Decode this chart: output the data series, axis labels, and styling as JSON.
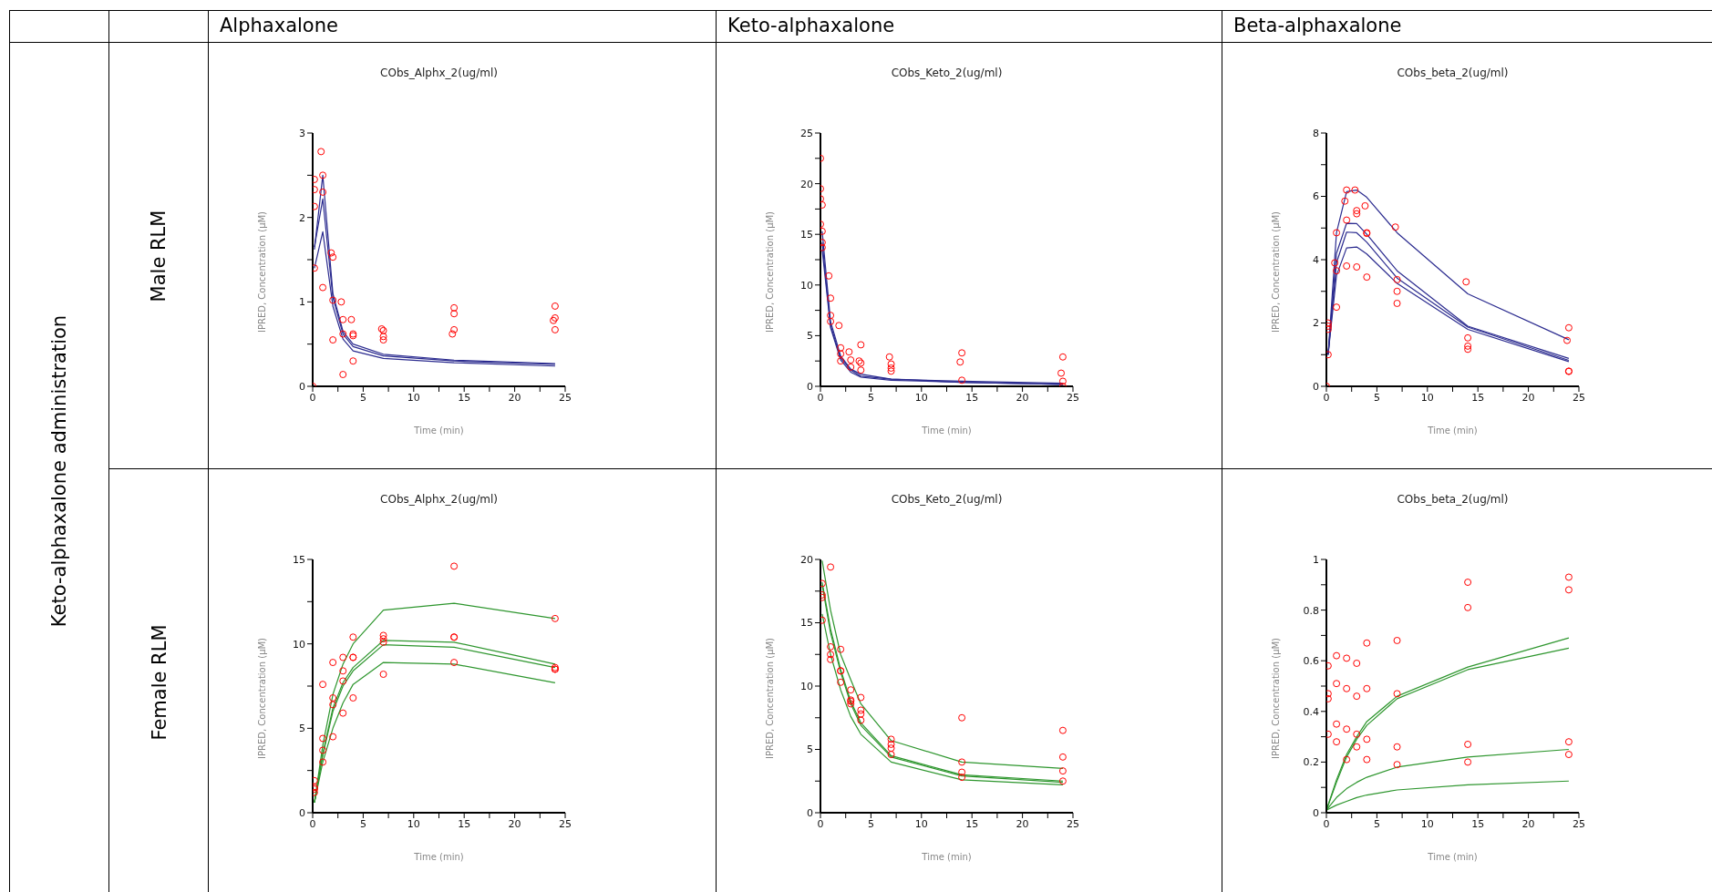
{
  "chart_data": [
    {
      "type": "line",
      "title": "CObs_Alphx_2(ug/ml)",
      "xlabel": "Time (min)",
      "ylabel": "IPRED, Concentration (µM)",
      "annotations": [
        "Alphaxalone",
        "Male RLM",
        "Keto-alphaxalone administration"
      ],
      "xlim": [
        0,
        25
      ],
      "xticks": [
        0,
        {
          "value": 2.5,
          "label": null
        },
        5,
        {
          "value": 7.5,
          "label": null
        },
        10,
        {
          "value": 12.5,
          "label": null
        },
        15,
        {
          "value": 17.5,
          "label": null
        },
        20,
        {
          "value": 22.5,
          "label": null
        },
        25
      ],
      "ylim": [
        0,
        3
      ],
      "yticks": [
        0,
        {
          "value": 0.5,
          "label": null
        },
        1,
        {
          "value": 1.5,
          "label": null
        },
        2,
        {
          "value": 2.5,
          "label": null
        },
        3
      ],
      "series": [
        {
          "type": "line",
          "color": "#2b2b8f",
          "x": [
            0.17,
            1,
            2,
            3,
            4,
            7,
            14,
            24
          ],
          "values": [
            1.62,
            2.5,
            1.1,
            0.65,
            0.5,
            0.38,
            0.31,
            0.27
          ]
        },
        {
          "type": "line",
          "color": "#2b2b8f",
          "x": [
            0.17,
            1,
            2,
            3,
            4,
            7,
            14,
            24
          ],
          "values": [
            1.65,
            2.22,
            1.05,
            0.62,
            0.47,
            0.36,
            0.3,
            0.26
          ]
        },
        {
          "type": "line",
          "color": "#2b2b8f",
          "x": [
            0.17,
            1,
            2,
            3,
            4,
            7,
            14,
            24
          ],
          "values": [
            1.4,
            1.83,
            0.95,
            0.56,
            0.42,
            0.33,
            0.28,
            0.24
          ]
        },
        {
          "type": "scatter",
          "color": "#ff0000",
          "marker": "circle",
          "x": [
            0,
            0.17,
            0.17,
            0.17,
            0.17,
            0.83,
            1,
            1,
            1,
            1.83,
            2,
            2,
            2,
            2.83,
            3,
            3,
            3,
            3.83,
            4,
            4,
            4,
            6.83,
            7,
            7,
            7,
            13.83,
            14,
            14,
            14,
            23.83,
            24,
            24,
            24
          ],
          "values": [
            0,
            2.45,
            2.33,
            2.13,
            1.4,
            2.78,
            2.5,
            2.3,
            1.17,
            1.58,
            1.53,
            1.02,
            0.55,
            1.0,
            0.79,
            0.62,
            0.14,
            0.79,
            0.62,
            0.6,
            0.3,
            0.68,
            0.66,
            0.59,
            0.55,
            0.62,
            0.93,
            0.86,
            0.67,
            0.78,
            0.95,
            0.81,
            0.67
          ]
        }
      ]
    },
    {
      "type": "line",
      "title": "CObs_Keto_2(ug/ml)",
      "xlabel": "Time (min)",
      "ylabel": "IPRED, Concentration (µM)",
      "annotations": [
        "Keto-alphaxalone"
      ],
      "xlim": [
        0,
        25
      ],
      "xticks": [
        0,
        {
          "value": 2.5,
          "label": null
        },
        5,
        {
          "value": 7.5,
          "label": null
        },
        10,
        {
          "value": 12.5,
          "label": null
        },
        15,
        {
          "value": 17.5,
          "label": null
        },
        20,
        {
          "value": 22.5,
          "label": null
        },
        25
      ],
      "ylim": [
        0,
        25
      ],
      "yticks": [
        0,
        {
          "value": 2.5,
          "label": null
        },
        5,
        {
          "value": 7.5,
          "label": null
        },
        10,
        {
          "value": 12.5,
          "label": null
        },
        15,
        {
          "value": 17.5,
          "label": null
        },
        20,
        {
          "value": 22.5,
          "label": null
        },
        25
      ],
      "series": [
        {
          "type": "line",
          "color": "#2b2b8f",
          "x": [
            0.17,
            1,
            2,
            3,
            4,
            7,
            14,
            24
          ],
          "values": [
            15.3,
            6.4,
            3.0,
            1.7,
            1.2,
            0.7,
            0.5,
            0.3
          ]
        },
        {
          "type": "line",
          "color": "#2b2b8f",
          "x": [
            0.17,
            1,
            2,
            3,
            4,
            7,
            14,
            24
          ],
          "values": [
            14.2,
            6.0,
            2.8,
            1.6,
            1.0,
            0.7,
            0.4,
            0.2
          ]
        },
        {
          "type": "line",
          "color": "#2b2b8f",
          "x": [
            0.17,
            1,
            2,
            3,
            4,
            7,
            14,
            24
          ],
          "values": [
            13.5,
            5.8,
            2.6,
            1.4,
            0.9,
            0.6,
            0.4,
            0.2
          ]
        },
        {
          "type": "scatter",
          "color": "#ff0000",
          "marker": "circle",
          "x": [
            0,
            0,
            0,
            0,
            0.17,
            0.17,
            0.17,
            0.17,
            0.83,
            1,
            1,
            1,
            1.83,
            2,
            2,
            2,
            2.83,
            3,
            3,
            3.83,
            4,
            4,
            4,
            6.83,
            7,
            7,
            7,
            13.83,
            14,
            14,
            23.83,
            24,
            24,
            24
          ],
          "values": [
            22.5,
            19.5,
            18.5,
            16,
            17.9,
            15.3,
            14.2,
            13.7,
            10.9,
            8.7,
            7.0,
            6.4,
            6.0,
            3.8,
            3.2,
            2.5,
            3.4,
            2.6,
            1.9,
            2.5,
            4.1,
            2.3,
            1.6,
            2.9,
            2.2,
            1.8,
            1.5,
            2.4,
            3.3,
            0.6,
            1.3,
            2.9,
            0.5,
            0
          ]
        }
      ]
    },
    {
      "type": "line",
      "title": "CObs_beta_2(ug/ml)",
      "xlabel": "Time (min)",
      "ylabel": "IPRED, Concentration (µM)",
      "annotations": [
        "Beta-alphaxalone"
      ],
      "xlim": [
        0,
        25
      ],
      "xticks": [
        0,
        {
          "value": 2.5,
          "label": null
        },
        5,
        {
          "value": 7.5,
          "label": null
        },
        10,
        {
          "value": 12.5,
          "label": null
        },
        15,
        {
          "value": 17.5,
          "label": null
        },
        20,
        {
          "value": 22.5,
          "label": null
        },
        25
      ],
      "ylim": [
        0,
        8
      ],
      "yticks": [
        0,
        {
          "value": 1,
          "label": null
        },
        2,
        {
          "value": 3,
          "label": null
        },
        4,
        {
          "value": 5,
          "label": null
        },
        6,
        {
          "value": 7,
          "label": null
        },
        8
      ],
      "series": [
        {
          "type": "line",
          "color": "#2b2b8f",
          "x": [
            0.17,
            1,
            2,
            3,
            4,
            7,
            14,
            24
          ],
          "values": [
            1.0,
            4.85,
            6.15,
            6.2,
            5.97,
            4.85,
            2.92,
            1.47
          ]
        },
        {
          "type": "line",
          "color": "#2b2b8f",
          "x": [
            0.17,
            1,
            2,
            3,
            4,
            7,
            14,
            24
          ],
          "values": [
            1.0,
            4.2,
            5.15,
            5.14,
            4.8,
            3.65,
            1.9,
            0.88
          ]
        },
        {
          "type": "line",
          "color": "#2b2b8f",
          "x": [
            0.17,
            1,
            2,
            3,
            4,
            7,
            14,
            24
          ],
          "values": [
            1.0,
            3.9,
            4.87,
            4.85,
            4.55,
            3.42,
            1.87,
            0.82
          ]
        },
        {
          "type": "line",
          "color": "#2b2b8f",
          "x": [
            0.17,
            1,
            2,
            3,
            4,
            7,
            14,
            24
          ],
          "values": [
            1.0,
            3.5,
            4.37,
            4.4,
            4.18,
            3.25,
            1.8,
            0.78
          ]
        },
        {
          "type": "scatter",
          "color": "#ff0000",
          "marker": "circle",
          "x": [
            0,
            0.17,
            0.17,
            0.17,
            0.17,
            0.83,
            1,
            1,
            1,
            1.83,
            2,
            2,
            2,
            2.83,
            3,
            3,
            3,
            3.83,
            4,
            4,
            4,
            6.83,
            7,
            7,
            7,
            13.83,
            14,
            14,
            14,
            23.83,
            24,
            24,
            24
          ],
          "values": [
            0,
            2.0,
            1.9,
            1.8,
            1.0,
            3.9,
            4.85,
            3.65,
            2.5,
            5.85,
            6.2,
            5.25,
            3.8,
            6.2,
            5.55,
            5.45,
            3.77,
            5.7,
            4.85,
            4.83,
            3.45,
            5.03,
            3.37,
            3.0,
            2.62,
            3.3,
            1.53,
            1.27,
            1.17,
            1.45,
            1.85,
            0.48,
            0.47
          ]
        }
      ]
    },
    {
      "type": "line",
      "title": "CObs_Alphx_2(ug/ml)",
      "xlabel": "Time (min)",
      "ylabel": "IPRED, Concentration (µM)",
      "annotations": [
        "Female RLM"
      ],
      "xlim": [
        0,
        25
      ],
      "xticks": [
        0,
        {
          "value": 2.5,
          "label": null
        },
        5,
        {
          "value": 7.5,
          "label": null
        },
        10,
        {
          "value": 12.5,
          "label": null
        },
        15,
        {
          "value": 17.5,
          "label": null
        },
        20,
        {
          "value": 22.5,
          "label": null
        },
        25
      ],
      "ylim": [
        0,
        15
      ],
      "yticks": [
        0,
        {
          "value": 2.5,
          "label": null
        },
        5,
        {
          "value": 7.5,
          "label": null
        },
        10,
        {
          "value": 12.5,
          "label": null
        },
        15
      ],
      "series": [
        {
          "type": "line",
          "color": "#2e962e",
          "x": [
            0.17,
            1,
            2,
            3,
            4,
            7,
            14,
            24
          ],
          "values": [
            0.6,
            4.0,
            7.0,
            8.8,
            10.0,
            12.0,
            12.4,
            11.5
          ]
        },
        {
          "type": "line",
          "color": "#2e962e",
          "x": [
            0.17,
            1,
            2,
            3,
            4,
            7,
            14,
            24
          ],
          "values": [
            0.6,
            3.5,
            6.2,
            7.7,
            8.6,
            10.2,
            10.1,
            8.8
          ]
        },
        {
          "type": "line",
          "color": "#2e962e",
          "x": [
            0.17,
            1,
            2,
            3,
            4,
            7,
            14,
            24
          ],
          "values": [
            0.6,
            3.4,
            6.0,
            7.5,
            8.4,
            9.95,
            9.8,
            8.6
          ]
        },
        {
          "type": "line",
          "color": "#2e962e",
          "x": [
            0.17,
            1,
            2,
            3,
            4,
            7,
            14,
            24
          ],
          "values": [
            0.6,
            3.0,
            5.0,
            6.5,
            7.6,
            8.9,
            8.8,
            7.7
          ]
        },
        {
          "type": "scatter",
          "color": "#ff0000",
          "marker": "circle",
          "x": [
            0.17,
            0.17,
            0.17,
            0.17,
            1,
            1,
            1,
            1,
            2,
            2,
            2,
            2,
            3,
            3,
            3,
            3,
            4,
            4,
            4,
            4,
            7,
            7,
            7,
            7,
            14,
            14,
            14,
            14,
            24,
            24,
            24,
            24
          ],
          "values": [
            1.9,
            1.5,
            1.4,
            1.2,
            7.6,
            4.4,
            3.7,
            3.0,
            8.9,
            6.8,
            6.4,
            4.5,
            9.2,
            8.4,
            7.8,
            5.9,
            10.4,
            9.2,
            9.2,
            6.8,
            10.5,
            10.3,
            10.1,
            8.2,
            14.6,
            10.4,
            10.4,
            8.9,
            11.5,
            8.6,
            8.5,
            8.5
          ]
        }
      ]
    },
    {
      "type": "line",
      "title": "CObs_Keto_2(ug/ml)",
      "xlabel": "Time (min)",
      "ylabel": "IPRED, Concentration (µM)",
      "xlim": [
        0,
        25
      ],
      "xticks": [
        0,
        {
          "value": 2.5,
          "label": null
        },
        5,
        {
          "value": 7.5,
          "label": null
        },
        10,
        {
          "value": 12.5,
          "label": null
        },
        15,
        {
          "value": 17.5,
          "label": null
        },
        20,
        {
          "value": 22.5,
          "label": null
        },
        25
      ],
      "ylim": [
        0,
        20
      ],
      "yticks": [
        0,
        {
          "value": 2.5,
          "label": null
        },
        5,
        {
          "value": 7.5,
          "label": null
        },
        10,
        {
          "value": 12.5,
          "label": null
        },
        15,
        {
          "value": 17.5,
          "label": null
        },
        20
      ],
      "series": [
        {
          "type": "line",
          "color": "#2e962e",
          "x": [
            0.17,
            1,
            2,
            3,
            4,
            7,
            14,
            24
          ],
          "values": [
            19.9,
            16.0,
            12.5,
            10.5,
            8.6,
            5.7,
            4.0,
            3.5
          ]
        },
        {
          "type": "line",
          "color": "#2e962e",
          "x": [
            0.17,
            1,
            2,
            3,
            4,
            7,
            14,
            24
          ],
          "values": [
            18.2,
            14.5,
            11.3,
            8.8,
            7.1,
            4.5,
            3.0,
            2.5
          ]
        },
        {
          "type": "line",
          "color": "#2e962e",
          "x": [
            0.17,
            1,
            2,
            3,
            4,
            7,
            14,
            24
          ],
          "values": [
            18.0,
            14.2,
            11.1,
            8.6,
            6.9,
            4.4,
            2.9,
            2.4
          ]
        },
        {
          "type": "line",
          "color": "#2e962e",
          "x": [
            0.17,
            1,
            2,
            3,
            4,
            7,
            14,
            24
          ],
          "values": [
            15.7,
            12.5,
            9.7,
            7.6,
            6.2,
            4.0,
            2.6,
            2.2
          ]
        },
        {
          "type": "scatter",
          "color": "#ff0000",
          "marker": "circle",
          "x": [
            0.17,
            0.17,
            0.17,
            0.17,
            1,
            1,
            1,
            1,
            2,
            2,
            2,
            2,
            3,
            3,
            3,
            3,
            4,
            4,
            4,
            4,
            7,
            7,
            7,
            7,
            14,
            14,
            14,
            14,
            24,
            24,
            24,
            24
          ],
          "values": [
            18.1,
            17.2,
            17.0,
            15.2,
            19.4,
            13.1,
            12.5,
            12.1,
            12.9,
            11.2,
            11.2,
            10.3,
            9.7,
            8.9,
            8.8,
            8.6,
            9.1,
            8.1,
            7.8,
            7.3,
            5.8,
            5.4,
            5.1,
            4.6,
            7.5,
            4.0,
            3.2,
            2.8,
            6.5,
            4.4,
            3.3,
            2.5
          ]
        }
      ]
    },
    {
      "type": "line",
      "title": "CObs_beta_2(ug/ml)",
      "xlabel": "Time (min)",
      "ylabel": "IPRED, Concentration (µM)",
      "xlim": [
        0,
        25
      ],
      "xticks": [
        0,
        {
          "value": 2.5,
          "label": null
        },
        5,
        {
          "value": 7.5,
          "label": null
        },
        10,
        {
          "value": 12.5,
          "label": null
        },
        15,
        {
          "value": 17.5,
          "label": null
        },
        20,
        {
          "value": 22.5,
          "label": null
        },
        25
      ],
      "ylim": [
        0,
        1
      ],
      "yticks": [
        0,
        {
          "value": 0.1,
          "label": null
        },
        0.2,
        {
          "value": 0.3,
          "label": null
        },
        0.4,
        {
          "value": 0.5,
          "label": null
        },
        0.6,
        {
          "value": 0.7,
          "label": null
        },
        0.8,
        {
          "value": 0.9,
          "label": null
        },
        1
      ],
      "series": [
        {
          "type": "line",
          "color": "#2e962e",
          "x": [
            0,
            1,
            2,
            3,
            4,
            7,
            14,
            24
          ],
          "values": [
            0.01,
            0.13,
            0.23,
            0.3,
            0.36,
            0.46,
            0.575,
            0.69
          ]
        },
        {
          "type": "line",
          "color": "#2e962e",
          "x": [
            0,
            1,
            2,
            3,
            4,
            7,
            14,
            24
          ],
          "values": [
            0.01,
            0.12,
            0.22,
            0.29,
            0.345,
            0.45,
            0.565,
            0.65
          ]
        },
        {
          "type": "line",
          "color": "#2e962e",
          "x": [
            0,
            1,
            2,
            3,
            4,
            7,
            14,
            24
          ],
          "values": [
            0.01,
            0.06,
            0.095,
            0.12,
            0.14,
            0.18,
            0.22,
            0.25
          ]
        },
        {
          "type": "line",
          "color": "#2e962e",
          "x": [
            0,
            1,
            2,
            3,
            4,
            7,
            14,
            24
          ],
          "values": [
            0.01,
            0.03,
            0.045,
            0.06,
            0.07,
            0.09,
            0.11,
            0.125
          ]
        },
        {
          "type": "scatter",
          "color": "#ff0000",
          "marker": "circle",
          "x": [
            0.17,
            0.17,
            0.17,
            0.17,
            1,
            1,
            1,
            1,
            2,
            2,
            2,
            2,
            3,
            3,
            3,
            3,
            4,
            4,
            4,
            4,
            7,
            7,
            7,
            7,
            14,
            14,
            14,
            14,
            24,
            24,
            24,
            24
          ],
          "values": [
            0.58,
            0.47,
            0.45,
            0.31,
            0.62,
            0.51,
            0.35,
            0.28,
            0.61,
            0.49,
            0.33,
            0.21,
            0.59,
            0.46,
            0.31,
            0.26,
            0.67,
            0.49,
            0.29,
            0.21,
            0.68,
            0.47,
            0.26,
            0.19,
            0.91,
            0.81,
            0.27,
            0.2,
            0.93,
            0.88,
            0.28,
            0.23
          ]
        }
      ]
    }
  ]
}
